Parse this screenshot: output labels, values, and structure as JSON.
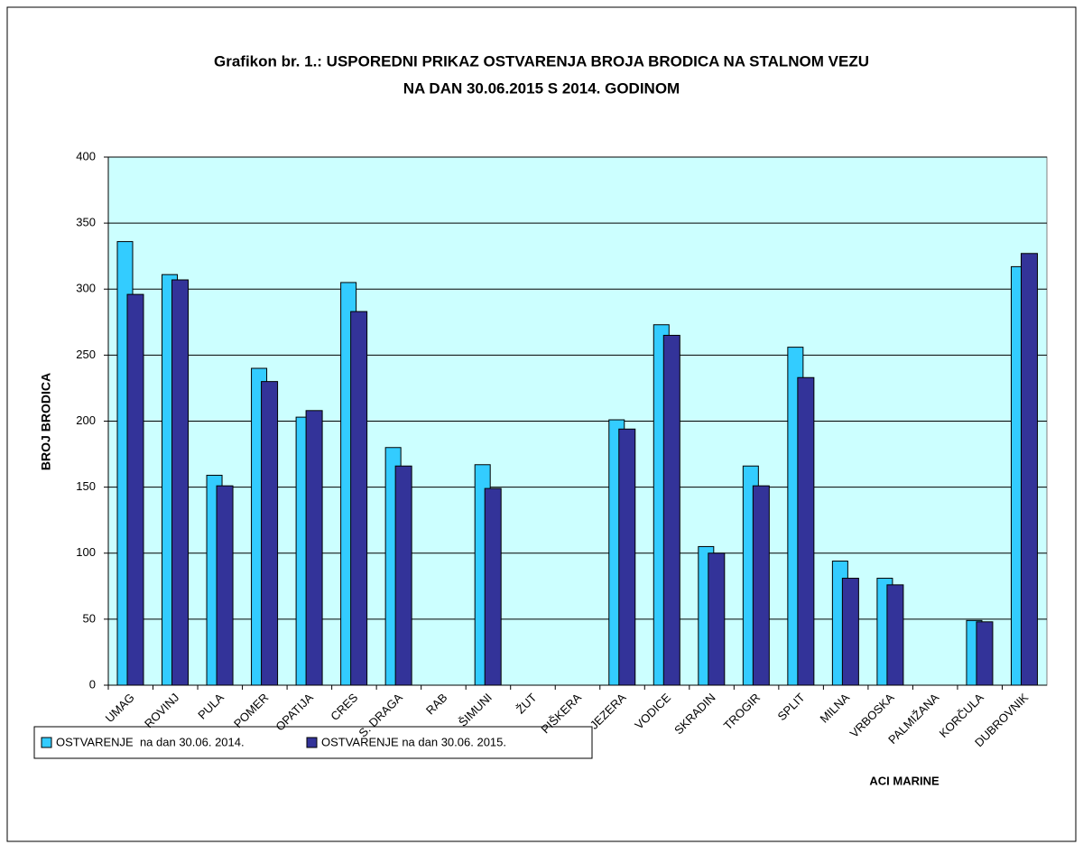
{
  "chart_data": {
    "type": "bar",
    "title": [
      "Grafikon br. 1.: USPOREDNI PRIKAZ OSTVARENJA BROJA BRODICA NA STALNOM VEZU",
      "NA DAN 30.06.2015 S 2014. GODINOM"
    ],
    "y_label": "BROJ BRODICA",
    "x_label": "ACI MARINE",
    "categories": [
      "UMAG",
      "ROVINJ",
      "PULA",
      "POMER",
      "OPATIJA",
      "CRES",
      "S. DRAGA",
      "RAB",
      "ŠIMUNI",
      "ŽUT",
      "PIŠKERA",
      "JEZERA",
      "VODICE",
      "SKRADIN",
      "TROGIR",
      "SPLIT",
      "MILNA",
      "VRBOSKA",
      "PALMIŽANA",
      "KORČULA",
      "DUBROVNIK"
    ],
    "series": [
      {
        "name": "OSTVARENJE  na dan 30.06. 2014.",
        "color": "#33ccff",
        "values": [
          336,
          311,
          159,
          240,
          203,
          305,
          180,
          null,
          167,
          null,
          null,
          201,
          273,
          105,
          166,
          256,
          94,
          81,
          null,
          49,
          317
        ]
      },
      {
        "name": "OSTVARENJE na dan 30.06. 2015.",
        "color": "#333399",
        "values": [
          296,
          307,
          151,
          230,
          208,
          283,
          166,
          null,
          149,
          null,
          null,
          194,
          265,
          100,
          151,
          233,
          81,
          76,
          null,
          48,
          327
        ]
      }
    ],
    "ylim": [
      0,
      400
    ],
    "yticks": [
      0,
      50,
      100,
      150,
      200,
      250,
      300,
      350,
      400
    ],
    "grid": true,
    "plot_background": "#ccffff"
  }
}
